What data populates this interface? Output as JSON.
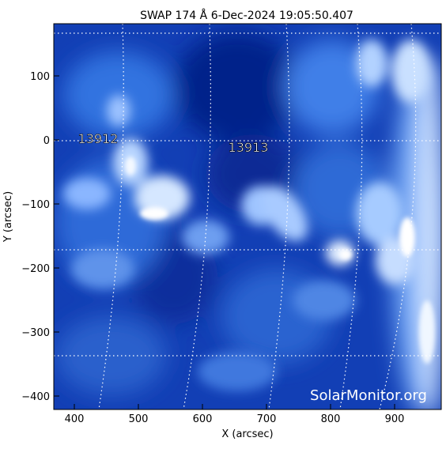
{
  "title": "SWAP 174 Å  6-Dec-2024 19:05:50.407",
  "xlabel": "X (arcsec)",
  "ylabel": "Y (arcsec)",
  "x_ticks": [
    "400",
    "500",
    "600",
    "700",
    "800",
    "900"
  ],
  "y_ticks": [
    "100",
    "0",
    "−100",
    "−200",
    "−300",
    "−400"
  ],
  "regions": [
    "13912",
    "13913"
  ],
  "watermark": "SolarMonitor.org",
  "colors": {
    "background": "#0a2f9a",
    "plasma_mid": "#2f6fe6",
    "plasma_bright": "#e8f3ff",
    "grid": "#ffffff",
    "axis": "#000000"
  }
}
